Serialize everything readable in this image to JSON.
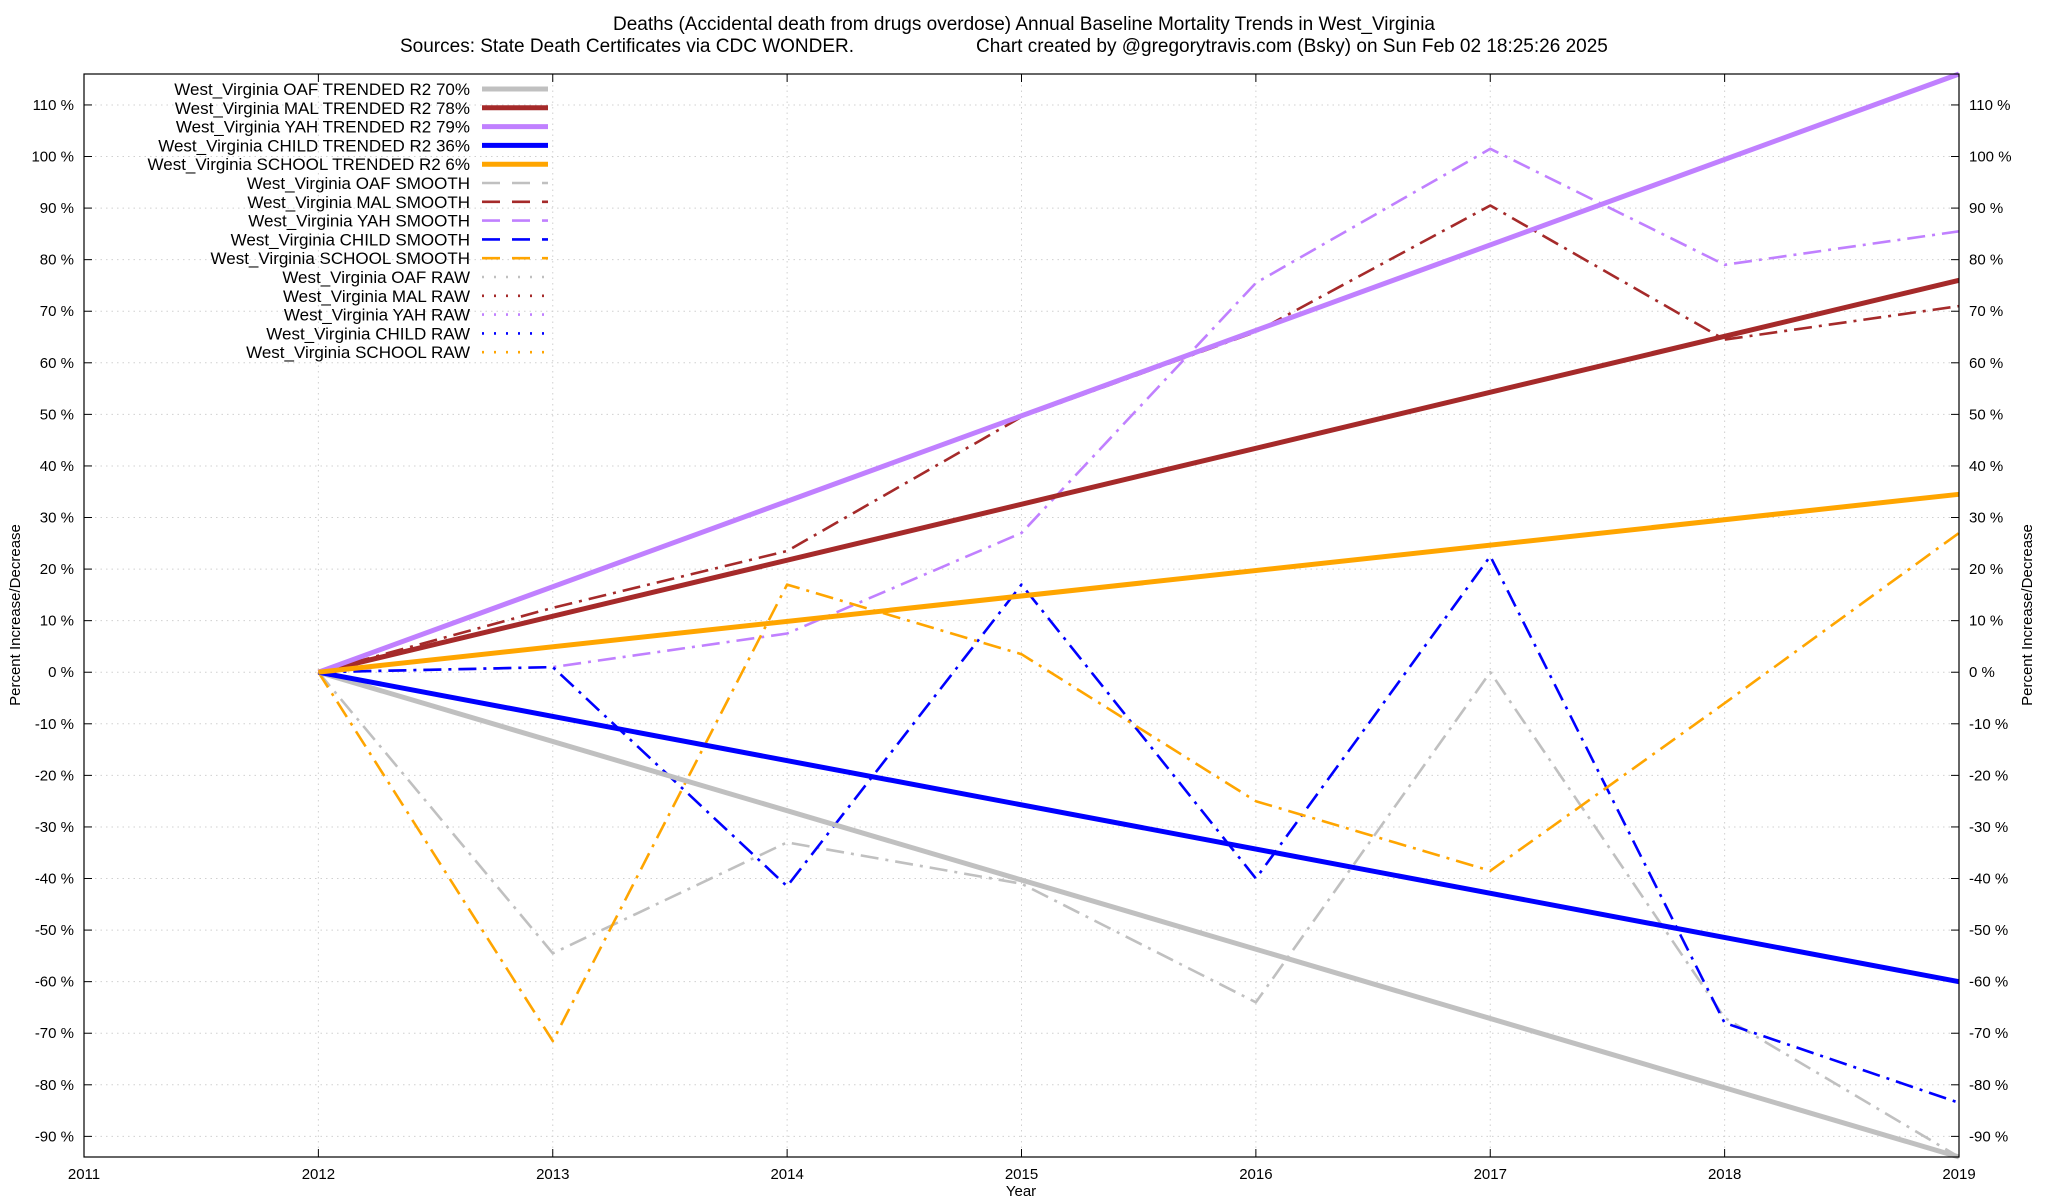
{
  "chart_data": {
    "type": "line",
    "title_line1": "Deaths (Accidental death from drugs overdose)  Annual Baseline Mortality Trends in West_Virginia",
    "title_line2_left": "Sources: State Death Certificates via CDC WONDER.",
    "title_line2_right": "Chart created by @gregorytravis.com (Bsky) on Sun Feb 02 18:25:26 2025",
    "xlabel": "Year",
    "ylabel_left": "Percent Increase/Decrease",
    "ylabel_right": "Percent Increase/Decrease",
    "xlim": [
      2011,
      2019
    ],
    "ylim": [
      -94,
      116
    ],
    "x_ticks": [
      2011,
      2012,
      2013,
      2014,
      2015,
      2016,
      2017,
      2018,
      2019
    ],
    "y_ticks": [
      -90,
      -80,
      -70,
      -60,
      -50,
      -40,
      -30,
      -20,
      -10,
      0,
      10,
      20,
      30,
      40,
      50,
      60,
      70,
      80,
      90,
      100,
      110
    ],
    "y_tick_suffix": " %",
    "grid": true,
    "legend_position": "top-left",
    "series": [
      {
        "name": "West_Virginia OAF TRENDED R2  70%",
        "style": "solid",
        "color": "#c0c0c0",
        "x": [
          2012,
          2019
        ],
        "values": [
          0,
          -94
        ]
      },
      {
        "name": "West_Virginia MAL TRENDED R2  78%",
        "style": "solid",
        "color": "#a52a2a",
        "x": [
          2012,
          2019
        ],
        "values": [
          0,
          76
        ]
      },
      {
        "name": "West_Virginia YAH TRENDED R2  79%",
        "style": "solid",
        "color": "#c080ff",
        "x": [
          2012,
          2019
        ],
        "values": [
          0,
          116
        ]
      },
      {
        "name": "West_Virginia CHILD TRENDED R2  36%",
        "style": "solid",
        "color": "#0000ff",
        "x": [
          2012,
          2019
        ],
        "values": [
          0,
          -60
        ]
      },
      {
        "name": "West_Virginia SCHOOL TRENDED R2   6%",
        "style": "solid",
        "color": "#ffa500",
        "x": [
          2012,
          2019
        ],
        "values": [
          0,
          34.5
        ]
      },
      {
        "name": "West_Virginia OAF SMOOTH",
        "style": "dashdot",
        "color": "#c0c0c0",
        "x": [
          2012,
          2013,
          2014,
          2015,
          2016,
          2017,
          2018,
          2019
        ],
        "values": [
          0,
          -54.5,
          -33,
          -41,
          -64,
          0,
          -67,
          -94
        ]
      },
      {
        "name": "West_Virginia MAL SMOOTH",
        "style": "dashdot",
        "color": "#a52a2a",
        "x": [
          2012,
          2013,
          2014,
          2015,
          2016,
          2017,
          2018,
          2019
        ],
        "values": [
          0,
          12.5,
          23.5,
          49.5,
          66,
          90.5,
          64.5,
          71
        ]
      },
      {
        "name": "West_Virginia YAH SMOOTH",
        "style": "dashdot",
        "color": "#c080ff",
        "x": [
          2012,
          2013,
          2014,
          2015,
          2016,
          2017,
          2018,
          2019
        ],
        "values": [
          0,
          1,
          7.5,
          27,
          75.5,
          101.5,
          79,
          85.5
        ]
      },
      {
        "name": "West_Virginia CHILD SMOOTH",
        "style": "dashdot",
        "color": "#0000ff",
        "x": [
          2012,
          2013,
          2014,
          2015,
          2016,
          2017,
          2018,
          2019
        ],
        "values": [
          0,
          1,
          -41.5,
          17,
          -40,
          22.5,
          -68,
          -83.5
        ]
      },
      {
        "name": "West_Virginia SCHOOL SMOOTH",
        "style": "dashdot",
        "color": "#ffa500",
        "x": [
          2012,
          2013,
          2014,
          2015,
          2016,
          2017,
          2018,
          2019
        ],
        "values": [
          0,
          -71.5,
          17,
          3.5,
          -25,
          -38.5,
          -6,
          27
        ]
      },
      {
        "name": "West_Virginia OAF RAW",
        "style": "dotted",
        "color": "#c0c0c0",
        "x": [],
        "values": []
      },
      {
        "name": "West_Virginia MAL RAW",
        "style": "dotted",
        "color": "#a52a2a",
        "x": [],
        "values": []
      },
      {
        "name": "West_Virginia YAH RAW",
        "style": "dotted",
        "color": "#c080ff",
        "x": [],
        "values": []
      },
      {
        "name": "West_Virginia CHILD RAW",
        "style": "dotted",
        "color": "#0000ff",
        "x": [],
        "values": []
      },
      {
        "name": "West_Virginia SCHOOL RAW",
        "style": "dotted",
        "color": "#ffa500",
        "x": [],
        "values": []
      }
    ]
  }
}
